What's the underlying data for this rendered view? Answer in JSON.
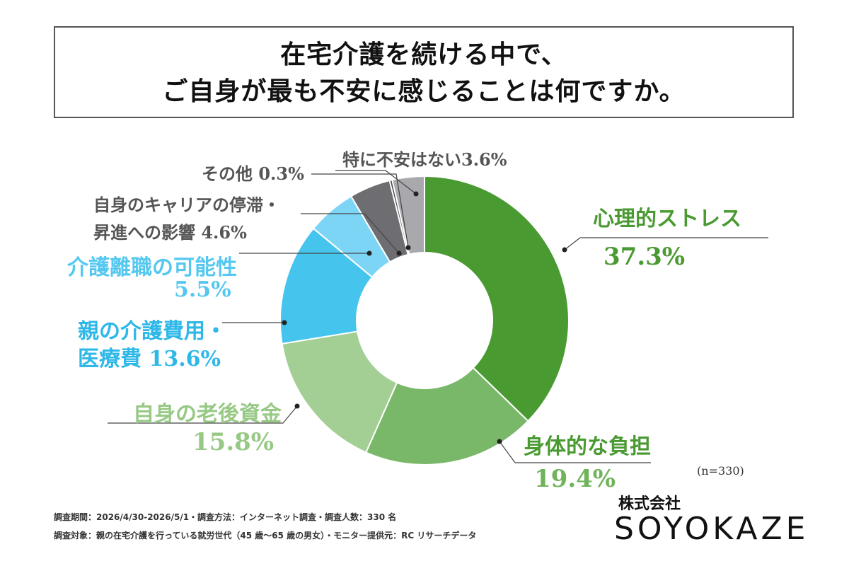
{
  "title": {
    "line1": "在宅介護を続ける中で、",
    "line2": "ご自身が最も不安に感じることは何ですか。"
  },
  "chart_data": {
    "type": "pie",
    "donut": true,
    "n_note": "(n=330)",
    "slices": [
      {
        "label": "心理的ストレス",
        "value": 37.3,
        "display": "37.3%",
        "color": "#4a9a32"
      },
      {
        "label": "身体的な負担",
        "value": 19.4,
        "display": "19.4%",
        "color": "#7ab869"
      },
      {
        "label": "自身の老後資金",
        "value": 15.8,
        "display": "15.8%",
        "color": "#a3cf94"
      },
      {
        "label": "親の介護費用・医療費",
        "value": 13.6,
        "display": "13.6%",
        "color": "#45c4ee"
      },
      {
        "label": "介護離職の可能性",
        "value": 5.5,
        "display": "5.5%",
        "color": "#7dd5f5"
      },
      {
        "label": "自身のキャリアの停滞・昇進への影響",
        "value": 4.6,
        "display": "4.6%",
        "color": "#6e6e72"
      },
      {
        "label": "その他",
        "value": 0.3,
        "display": "0.3%",
        "color": "#4a4a4e"
      },
      {
        "label": "特に不安はない",
        "value": 3.6,
        "display": "3.6%",
        "color": "#a9a9ad"
      }
    ]
  },
  "labels": {
    "stress_name": "心理的ストレス",
    "stress_pct": "37.3%",
    "physical_name": "身体的な負担",
    "physical_pct": "19.4%",
    "oldage_name": "自身の老後資金",
    "oldage_pct": "15.8%",
    "cost_line1": "親の介護費用・",
    "cost_line2": "医療費 13.6%",
    "resign_name": "介護離職の可能性",
    "resign_pct": "5.5%",
    "career_line1": "自身のキャリアの停滞・",
    "career_line2": "昇進への影響 4.6%",
    "other": "その他 0.3%",
    "none": "特に不安はない3.6%"
  },
  "footnotes": {
    "line1": "調査期間：2026/4/30-2026/5/1・調査方法：インターネット調査・調査人数：330 名",
    "line2": "調査対象：親の在宅介護を行っている就労世代（45 歳〜65 歳の男女）・モニター提供元：RC リサーチデータ"
  },
  "logo": {
    "company": "株式会社",
    "name": "SOYOKAZE"
  }
}
